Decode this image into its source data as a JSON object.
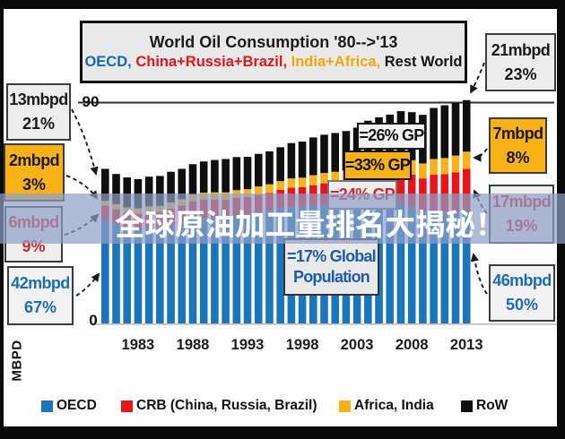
{
  "banner": {
    "text": "全球原油加工量排名大揭秘！",
    "band_color": "rgba(143,158,200,0.70)",
    "text_color": "#ffffff"
  },
  "title_box": {
    "line1": "World Oil Consumption '80-->'13",
    "line2_parts": [
      {
        "label": "OECD,",
        "color": "#1668b3"
      },
      {
        "label": " China+Russia+Brazil,",
        "color": "#e0151b"
      },
      {
        "label": " India+Africa,",
        "color": "#f2a50c"
      },
      {
        "label": " Rest World",
        "color": "#141414"
      }
    ]
  },
  "y_axis": {
    "label": "MBPD",
    "tick_top": "90",
    "tick_bottom": "0"
  },
  "callouts": {
    "left": [
      {
        "value": "13mbpd",
        "pct": "21%",
        "bg": "#ededed",
        "color": "#1a1a1a",
        "series": "RoW",
        "year": "1980"
      },
      {
        "value": "2mbpd",
        "pct": "3%",
        "bg": "#f7b218",
        "color": "#1a1a1a",
        "series": "Africa, India",
        "year": "1980"
      },
      {
        "value": "6mbpd",
        "pct": "9%",
        "bg": "#efefef",
        "color": "#d5232b",
        "series": "CRB",
        "year": "1980"
      },
      {
        "value": "42mbpd",
        "pct": "67%",
        "bg": "#f2f2f2",
        "color": "#1b6cb8",
        "series": "OECD",
        "year": "1980"
      }
    ],
    "right": [
      {
        "value": "21mbpd",
        "pct": "23%",
        "bg": "#ededed",
        "color": "#1a1a1a",
        "series": "RoW",
        "year": "2013"
      },
      {
        "value": "7mbpd",
        "pct": "8%",
        "bg": "#f7b218",
        "color": "#1a1a1a",
        "series": "Africa, India",
        "year": "2013"
      },
      {
        "value": "17mbpd",
        "pct": "19%",
        "bg": "#efefef",
        "color": "#d5232b",
        "series": "CRB",
        "year": "2013"
      },
      {
        "value": "46mbpd",
        "pct": "50%",
        "bg": "#f2f2f2",
        "color": "#1b6cb8",
        "series": "OECD",
        "year": "2013"
      }
    ]
  },
  "gp_notes": [
    {
      "label": "=26% GP",
      "bg": "#f4f4f4",
      "color": "#141414"
    },
    {
      "label": "=33% GP",
      "bg": "#f7b218",
      "color": "#141414"
    },
    {
      "label": "=24% GP",
      "bg": "#ededed",
      "color": "#d5232b"
    },
    {
      "label": "=17% Global",
      "label2": "Population",
      "bg": "#e9e9e9",
      "color": "#1b5cb0"
    }
  ],
  "legend": {
    "items": [
      {
        "label": "OECD",
        "color": "#1b75bb"
      },
      {
        "label": "CRB (China, Russia, Brazil)",
        "color": "#e8141c"
      },
      {
        "label": "Africa, India",
        "color": "#f7b218"
      },
      {
        "label": "RoW",
        "color": "#0f0f0f"
      }
    ]
  },
  "chart_data": {
    "type": "bar",
    "stacked": true,
    "title": "World Oil Consumption '80-->'13",
    "ylabel": "MBPD",
    "ylim": [
      0,
      90
    ],
    "y_gridlines": [
      90
    ],
    "x_tick_labels": [
      "1983",
      "1988",
      "1993",
      "1998",
      "2003",
      "2008",
      "2013"
    ],
    "categories": [
      "1980",
      "1981",
      "1982",
      "1983",
      "1984",
      "1985",
      "1986",
      "1987",
      "1988",
      "1989",
      "1990",
      "1991",
      "1992",
      "1993",
      "1994",
      "1995",
      "1996",
      "1997",
      "1998",
      "1999",
      "2000",
      "2001",
      "2002",
      "2003",
      "2004",
      "2005",
      "2006",
      "2007",
      "2008",
      "2009",
      "2010",
      "2011",
      "2012",
      "2013"
    ],
    "series": [
      {
        "name": "OECD",
        "color": "#1b75bb",
        "values": [
          42,
          40.5,
          39,
          38.5,
          39,
          39,
          40,
          41,
          42.5,
          43,
          43,
          43,
          44,
          44.5,
          45.5,
          46,
          47,
          47.5,
          47.5,
          48,
          48.5,
          48.5,
          48.5,
          49,
          49.5,
          50,
          49.5,
          49,
          47.5,
          45.5,
          46,
          45.5,
          45.5,
          46
        ]
      },
      {
        "name": "CRB (China, Russia, Brazil)",
        "color": "#e8141c",
        "values": [
          6,
          6,
          6.1,
          6.2,
          6.4,
          6.5,
          6.8,
          7,
          7.3,
          7.5,
          7.5,
          7.4,
          7.2,
          7,
          7,
          7.2,
          7.4,
          7.8,
          8,
          8.3,
          8.6,
          8.9,
          9.3,
          9.9,
          10.8,
          11.3,
          11.9,
          12.6,
          13.1,
          13.6,
          14.6,
          15.3,
          16.1,
          17
        ]
      },
      {
        "name": "Africa, India",
        "color": "#f7b218",
        "values": [
          2,
          2.1,
          2.2,
          2.2,
          2.3,
          2.4,
          2.5,
          2.6,
          2.7,
          2.8,
          2.9,
          3,
          3.1,
          3.2,
          3.3,
          3.5,
          3.6,
          3.8,
          3.9,
          4.1,
          4.2,
          4.4,
          4.5,
          4.7,
          5,
          5.2,
          5.4,
          5.7,
          5.9,
          6.1,
          6.4,
          6.6,
          6.8,
          7
        ]
      },
      {
        "name": "RoW",
        "color": "#0f0f0f",
        "values": [
          13,
          12.3,
          12.2,
          11.9,
          12.1,
          12.2,
          12.5,
          12.4,
          12.4,
          12.7,
          13.2,
          13.6,
          13.5,
          13.2,
          13.3,
          13.4,
          13.8,
          14.4,
          14.7,
          15.4,
          15.6,
          15.8,
          16.1,
          16.2,
          17.3,
          17.5,
          18.3,
          19.2,
          19.6,
          19.8,
          20.8,
          21.5,
          21.4,
          21
        ]
      }
    ]
  }
}
